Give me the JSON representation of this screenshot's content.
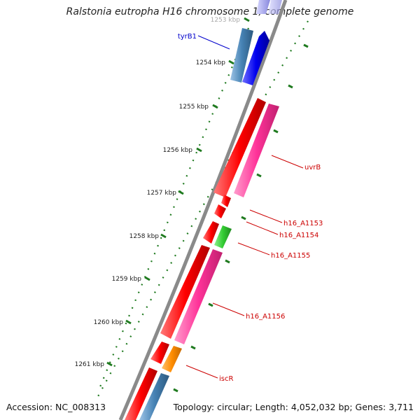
{
  "title": "Ralstonia eutropha H16 chromosome 1, complete genome",
  "footer": {
    "accession": "Accession: NC_008313",
    "summary": "Topology: circular; Length: 4,052,032 bp; Genes: 3,711"
  },
  "colors": {
    "backbone": "#8a8a8a",
    "ticks": "#1f7a1f",
    "forward_cds": "#ff0000",
    "reverse_cds": "#ff3399",
    "gene_blue": "#0000ee",
    "gene_steel": "#4682b4",
    "gene_green": "#33cc33",
    "gene_orange": "#ff8c00",
    "label_red": "#cc0000",
    "label_blue": "#0000cc"
  },
  "ruler": {
    "unit": "kbp",
    "labels": [
      "1253 kbp",
      "1254 kbp",
      "1255 kbp",
      "1256 kbp",
      "1257 kbp",
      "1258 kbp",
      "1259 kbp",
      "1260 kbp",
      "1261 kbp"
    ]
  },
  "gene_labels": [
    {
      "name": "tyrB1",
      "color": "blue"
    },
    {
      "name": "uvrB",
      "color": "red"
    },
    {
      "name": "h16_A1153",
      "color": "red"
    },
    {
      "name": "h16_A1154",
      "color": "red"
    },
    {
      "name": "h16_A1155",
      "color": "red"
    },
    {
      "name": "h16_A1156",
      "color": "red"
    },
    {
      "name": "iscR",
      "color": "red"
    }
  ]
}
